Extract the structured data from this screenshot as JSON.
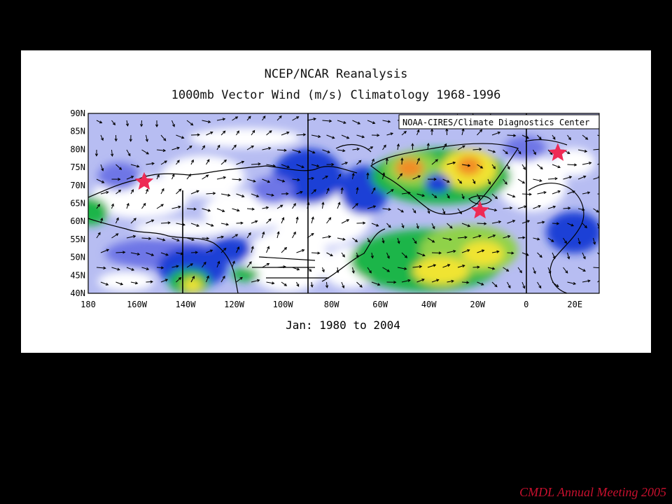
{
  "slide": {
    "footer": "CMDL Annual Meeting 2005"
  },
  "figure": {
    "title_line1": "NCEP/NCAR Reanalysis",
    "title_line2": "1000mb Vector Wind (m/s) Climatology 1968-1996",
    "credit": "NOAA-CIRES/Climate Diagnostics Center",
    "date_range": "Jan: 1980 to 2004",
    "lat_labels": [
      "90N",
      "85N",
      "80N",
      "75N",
      "70N",
      "65N",
      "60N",
      "55N",
      "50N",
      "45N",
      "40N"
    ],
    "lon_labels": [
      "180",
      "160W",
      "140W",
      "120W",
      "100W",
      "80W",
      "60W",
      "40W",
      "20W",
      "0",
      "20E"
    ],
    "colors": {
      "weak": "#ffffff",
      "light_blue": "#b7bdf2",
      "mid_blue": "#6e76e6",
      "blue": "#1f3fd6",
      "green": "#1fb54a",
      "light_green": "#8fd24a",
      "yellow": "#f0e432",
      "orange": "#f28c28",
      "marker": "#ee2a55"
    },
    "markers": [
      {
        "name": "site-alaska",
        "lon": -157,
        "lat": 71
      },
      {
        "name": "site-iceland",
        "lon": -19,
        "lat": 63
      },
      {
        "name": "site-svalbard",
        "lon": 13,
        "lat": 79
      }
    ]
  }
}
